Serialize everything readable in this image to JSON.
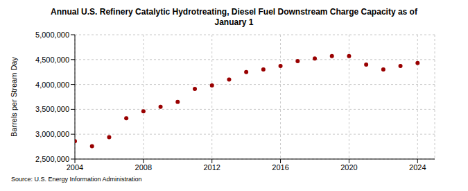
{
  "chart_data": {
    "type": "scatter",
    "title": "Annual U.S. Refinery Catalytic Hydrotreating, Diesel Fuel Downstream Charge Capacity as of January 1",
    "y_label": "Barrels per Stream Day",
    "source": "Source: U.S. Energy Information Administration",
    "x": [
      2004,
      2005,
      2006,
      2007,
      2008,
      2009,
      2010,
      2011,
      2012,
      2013,
      2014,
      2015,
      2016,
      2017,
      2018,
      2019,
      2020,
      2021,
      2022,
      2023,
      2024
    ],
    "values": [
      2860000,
      2760000,
      2940000,
      3320000,
      3460000,
      3550000,
      3650000,
      3910000,
      3980000,
      4100000,
      4250000,
      4300000,
      4370000,
      4470000,
      4520000,
      4570000,
      4570000,
      4400000,
      4300000,
      4370000,
      4430000
    ],
    "color": "#990000",
    "marker": "circle",
    "grid": true,
    "xlim": [
      2004,
      2025
    ],
    "xticks": [
      2004,
      2008,
      2012,
      2016,
      2020,
      2024
    ],
    "ylim": [
      2500000,
      5000000
    ],
    "yticks": [
      {
        "value": 2500000,
        "label": "2,500,000"
      },
      {
        "value": 3000000,
        "label": "3,000,000"
      },
      {
        "value": 3500000,
        "label": "3,500,000"
      },
      {
        "value": 4000000,
        "label": "4,000,000"
      },
      {
        "value": 4500000,
        "label": "4,500,000"
      },
      {
        "value": 5000000,
        "label": "5,000,000"
      }
    ]
  }
}
